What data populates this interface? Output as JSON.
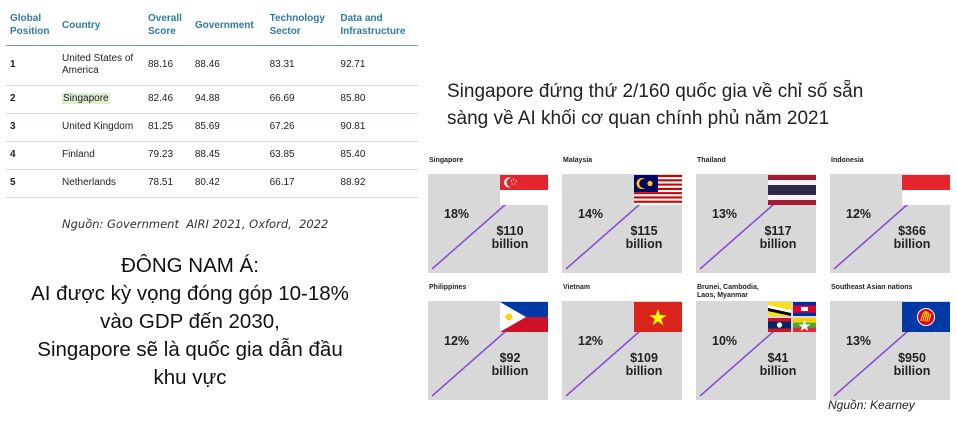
{
  "table": {
    "headers": [
      "Global\nPosition",
      "Country",
      "Overall\nScore",
      "Government",
      "Technology\nSector",
      "Data and\nInfrastructure"
    ],
    "rows": [
      [
        "1",
        "United States of America",
        "88.16",
        "88.46",
        "83.31",
        "92.71"
      ],
      [
        "2",
        "Singapore",
        "82.46",
        "94.88",
        "66.69",
        "85.80"
      ],
      [
        "3",
        "United Kingdom",
        "81.25",
        "85.69",
        "67.26",
        "90.81"
      ],
      [
        "4",
        "Finland",
        "79.23",
        "88.45",
        "63.85",
        "85.40"
      ],
      [
        "5",
        "Netherlands",
        "78.51",
        "80.42",
        "66.17",
        "88.92"
      ]
    ],
    "source": "Nguồn: Government  AIRI 2021, Oxford,  2022",
    "header_color": "#2f7aa6",
    "highlight_color": "#dfeecf"
  },
  "sea_text": {
    "line1": "ĐÔNG NAM Á:",
    "line2": "AI được kỳ vọng đóng góp 10-18%",
    "line3": "vào GDP đến 2030,",
    "line4": "Singapore sẽ là quốc gia dẫn đầu",
    "line5": "khu vực"
  },
  "headline": {
    "line1": "Singapore đứng thứ 2/160 quốc gia về chỉ số sẵn",
    "line2": "sàng về AI khối cơ quan chính phủ năm 2021"
  },
  "countries": [
    {
      "name": "Singapore",
      "pct": "18%",
      "amount": "$110",
      "unit": "billion",
      "flag": "singapore-flag"
    },
    {
      "name": "Malaysia",
      "pct": "14%",
      "amount": "$115",
      "unit": "billion",
      "flag": "malaysia-flag"
    },
    {
      "name": "Thailand",
      "pct": "13%",
      "amount": "$117",
      "unit": "billion",
      "flag": "thailand-flag"
    },
    {
      "name": "Indonesia",
      "pct": "12%",
      "amount": "$366",
      "unit": "billion",
      "flag": "indonesia-flag"
    },
    {
      "name": "Philippines",
      "pct": "12%",
      "amount": "$92",
      "unit": "billion",
      "flag": "philippines-flag"
    },
    {
      "name": "Vietnam",
      "pct": "12%",
      "amount": "$109",
      "unit": "billion",
      "flag": "vietnam-flag"
    },
    {
      "name": "Brunei, Cambodia,\nLaos, Myanmar",
      "pct": "10%",
      "amount": "$41",
      "unit": "billion",
      "flag": "brunei-cambodia-laos-myanmar-flags"
    },
    {
      "name": "Southeast Asian nations",
      "pct": "13%",
      "amount": "$950",
      "unit": "billion",
      "flag": "asean-flag"
    }
  ],
  "slash_color": "#8a4fd6",
  "tile_color": "#d8d8d8",
  "source_kearney": "Nguồn: Kearney"
}
